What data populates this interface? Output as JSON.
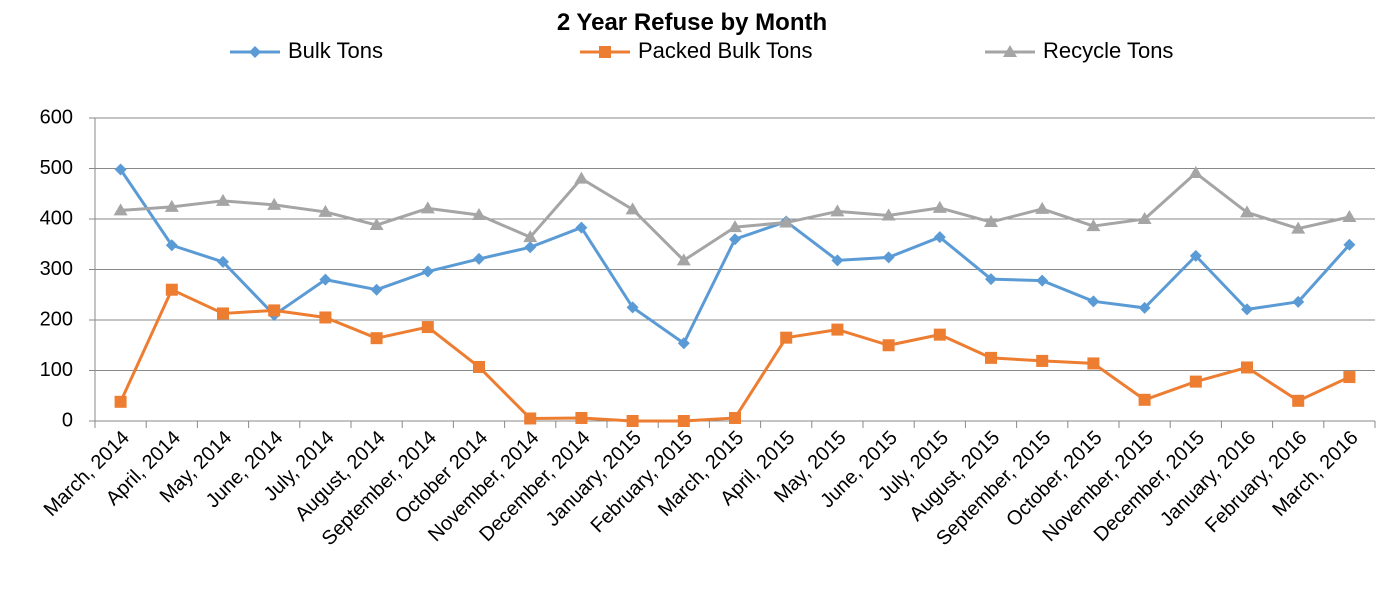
{
  "chart_data": {
    "type": "line",
    "title": "2 Year Refuse by Month",
    "categories": [
      "March, 2014",
      "April, 2014",
      "May, 2014",
      "June, 2014",
      "July, 2014",
      "August, 2014",
      "September, 2014",
      "October 2014",
      "November, 2014",
      "December, 2014",
      "January, 2015",
      "February, 2015",
      "March, 2015",
      "April, 2015",
      "May, 2015",
      "June, 2015",
      "July, 2015",
      "August, 2015",
      "September, 2015",
      "October, 2015",
      "November, 2015",
      "December, 2015",
      "January, 2016",
      "February, 2016",
      "March, 2016"
    ],
    "series": [
      {
        "name": "Bulk Tons",
        "color": "#5b9bd5",
        "marker": "diamond",
        "values": [
          498,
          348,
          315,
          210,
          280,
          260,
          296,
          321,
          344,
          383,
          225,
          154,
          360,
          395,
          318,
          324,
          364,
          281,
          278,
          237,
          224,
          327,
          221,
          236,
          349
        ]
      },
      {
        "name": "Packed Bulk Tons",
        "color": "#ed7d31",
        "marker": "square",
        "values": [
          38,
          260,
          213,
          219,
          205,
          164,
          186,
          107,
          5,
          6,
          0,
          0,
          6,
          165,
          181,
          150,
          171,
          125,
          119,
          114,
          42,
          78,
          106,
          40,
          87
        ]
      },
      {
        "name": "Recycle Tons",
        "color": "#a5a5a5",
        "marker": "triangle",
        "values": [
          417,
          424,
          436,
          428,
          414,
          388,
          421,
          408,
          364,
          480,
          419,
          318,
          384,
          393,
          415,
          407,
          422,
          394,
          420,
          386,
          400,
          491,
          413,
          381,
          404
        ]
      }
    ],
    "ylim": [
      0,
      600
    ],
    "yticks": [
      0,
      100,
      200,
      300,
      400,
      500,
      600
    ],
    "grid": true,
    "legend": "top"
  }
}
